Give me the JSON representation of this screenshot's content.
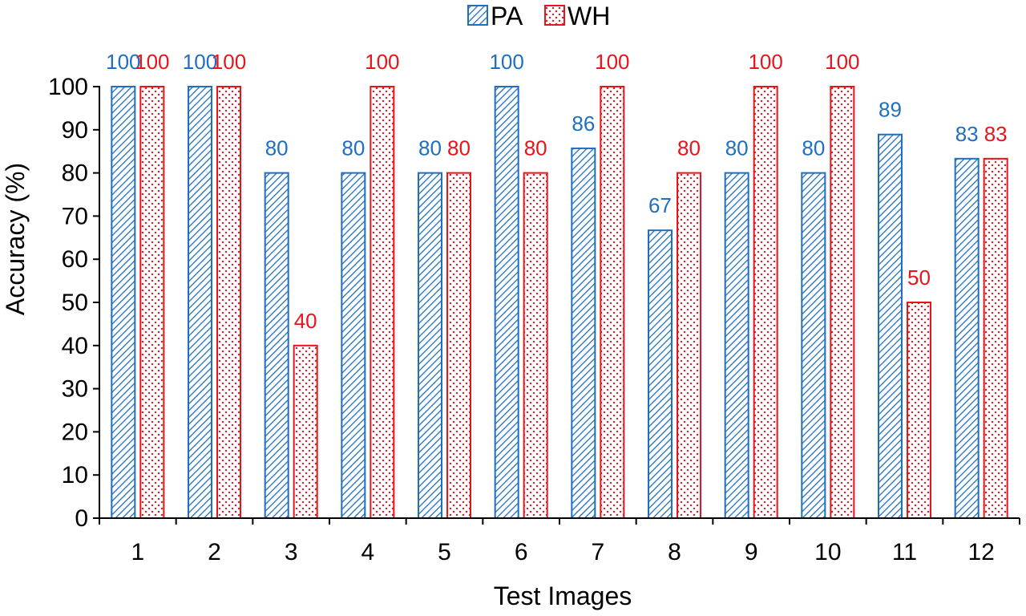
{
  "chart_data": {
    "type": "bar",
    "categories": [
      "1",
      "2",
      "3",
      "4",
      "5",
      "6",
      "7",
      "8",
      "9",
      "10",
      "11",
      "12"
    ],
    "series": [
      {
        "name": "PA",
        "color": "#1f6fc0",
        "pattern": "diagonal-hatch",
        "values": [
          100,
          100,
          80,
          80,
          80,
          100,
          86,
          67,
          80,
          80,
          89,
          83
        ],
        "labels": [
          "100",
          "100",
          "80",
          "80",
          "80",
          "100",
          "86",
          "67",
          "80",
          "80",
          "89",
          "83"
        ],
        "plotted_values": [
          100,
          100,
          80,
          80,
          80,
          100,
          85.7,
          66.7,
          80,
          80,
          88.9,
          83.3
        ]
      },
      {
        "name": "WH",
        "color": "#e8141c",
        "pattern": "dots",
        "values": [
          100,
          100,
          40,
          100,
          80,
          80,
          100,
          80,
          100,
          100,
          50,
          83
        ],
        "labels": [
          "100",
          "100",
          "40",
          "100",
          "80",
          "80",
          "100",
          "80",
          "100",
          "100",
          "50",
          "83"
        ],
        "plotted_values": [
          100,
          100,
          40,
          100,
          80,
          80,
          100,
          80,
          100,
          100,
          50,
          83.3
        ]
      }
    ],
    "xlabel": "Test Images",
    "ylabel": "Accuracy (%)",
    "ylim": [
      0,
      100
    ],
    "yticks": [
      0,
      10,
      20,
      30,
      40,
      50,
      60,
      70,
      80,
      90,
      100
    ],
    "grid": false,
    "legend_position": "top-center"
  }
}
